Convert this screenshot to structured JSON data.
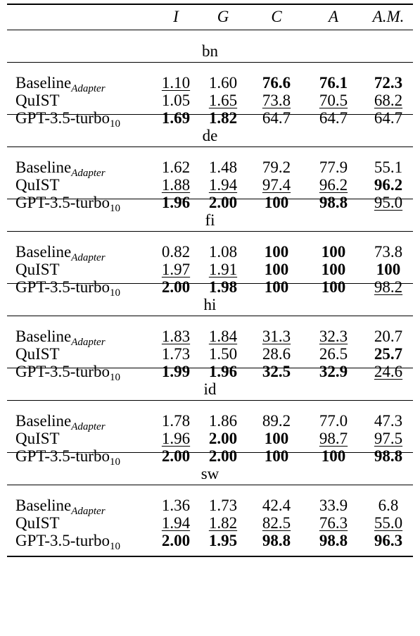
{
  "columns": [
    "I",
    "G",
    "C",
    "A",
    "A.M."
  ],
  "groups": [
    {
      "lang": "bn",
      "rows": [
        {
          "model": "Baseline",
          "sub": "Adapter",
          "cells": [
            {
              "v": "1.10",
              "u": true
            },
            {
              "v": "1.60"
            },
            {
              "v": "76.6",
              "b": true
            },
            {
              "v": "76.1",
              "b": true
            },
            {
              "v": "72.3",
              "b": true
            }
          ]
        },
        {
          "model": "QuIST",
          "sub": "",
          "cells": [
            {
              "v": "1.05"
            },
            {
              "v": "1.65",
              "u": true
            },
            {
              "v": "73.8",
              "u": true
            },
            {
              "v": "70.5",
              "u": true
            },
            {
              "v": "68.2",
              "u": true
            }
          ]
        },
        {
          "model": "GPT-3.5-turbo",
          "sub": "10",
          "cells": [
            {
              "v": "1.69",
              "b": true
            },
            {
              "v": "1.82",
              "b": true
            },
            {
              "v": "64.7"
            },
            {
              "v": "64.7"
            },
            {
              "v": "64.7"
            }
          ]
        }
      ]
    },
    {
      "lang": "de",
      "rows": [
        {
          "model": "Baseline",
          "sub": "Adapter",
          "cells": [
            {
              "v": "1.62"
            },
            {
              "v": "1.48"
            },
            {
              "v": "79.2"
            },
            {
              "v": "77.9"
            },
            {
              "v": "55.1"
            }
          ]
        },
        {
          "model": "QuIST",
          "sub": "",
          "cells": [
            {
              "v": "1.88",
              "u": true
            },
            {
              "v": "1.94",
              "u": true
            },
            {
              "v": "97.4",
              "u": true
            },
            {
              "v": "96.2",
              "u": true
            },
            {
              "v": "96.2",
              "b": true
            }
          ]
        },
        {
          "model": "GPT-3.5-turbo",
          "sub": "10",
          "cells": [
            {
              "v": "1.96",
              "b": true
            },
            {
              "v": "2.00",
              "b": true
            },
            {
              "v": "100",
              "b": true
            },
            {
              "v": "98.8",
              "b": true
            },
            {
              "v": "95.0",
              "u": true
            }
          ]
        }
      ]
    },
    {
      "lang": "fi",
      "rows": [
        {
          "model": "Baseline",
          "sub": "Adapter",
          "cells": [
            {
              "v": "0.82"
            },
            {
              "v": "1.08"
            },
            {
              "v": "100",
              "b": true
            },
            {
              "v": "100",
              "b": true
            },
            {
              "v": "73.8"
            }
          ]
        },
        {
          "model": "QuIST",
          "sub": "",
          "cells": [
            {
              "v": "1.97",
              "u": true
            },
            {
              "v": "1.91",
              "u": true
            },
            {
              "v": "100",
              "b": true
            },
            {
              "v": "100",
              "b": true
            },
            {
              "v": "100",
              "b": true
            }
          ]
        },
        {
          "model": "GPT-3.5-turbo",
          "sub": "10",
          "cells": [
            {
              "v": "2.00",
              "b": true
            },
            {
              "v": "1.98",
              "b": true
            },
            {
              "v": "100",
              "b": true
            },
            {
              "v": "100",
              "b": true
            },
            {
              "v": "98.2",
              "u": true
            }
          ]
        }
      ]
    },
    {
      "lang": "hi",
      "rows": [
        {
          "model": "Baseline",
          "sub": "Adapter",
          "cells": [
            {
              "v": "1.83",
              "u": true
            },
            {
              "v": "1.84",
              "u": true
            },
            {
              "v": "31.3",
              "u": true
            },
            {
              "v": "32.3",
              "u": true
            },
            {
              "v": "20.7"
            }
          ]
        },
        {
          "model": "QuIST",
          "sub": "",
          "cells": [
            {
              "v": "1.73"
            },
            {
              "v": "1.50"
            },
            {
              "v": "28.6"
            },
            {
              "v": "26.5"
            },
            {
              "v": "25.7",
              "b": true
            }
          ]
        },
        {
          "model": "GPT-3.5-turbo",
          "sub": "10",
          "cells": [
            {
              "v": "1.99",
              "b": true
            },
            {
              "v": "1.96",
              "b": true
            },
            {
              "v": "32.5",
              "b": true
            },
            {
              "v": "32.9",
              "b": true
            },
            {
              "v": "24.6",
              "u": true
            }
          ]
        }
      ]
    },
    {
      "lang": "id",
      "rows": [
        {
          "model": "Baseline",
          "sub": "Adapter",
          "cells": [
            {
              "v": "1.78"
            },
            {
              "v": "1.86"
            },
            {
              "v": "89.2"
            },
            {
              "v": "77.0"
            },
            {
              "v": "47.3"
            }
          ]
        },
        {
          "model": "QuIST",
          "sub": "",
          "cells": [
            {
              "v": "1.96",
              "u": true
            },
            {
              "v": "2.00",
              "b": true
            },
            {
              "v": "100",
              "b": true
            },
            {
              "v": "98.7",
              "u": true
            },
            {
              "v": "97.5",
              "u": true
            }
          ]
        },
        {
          "model": "GPT-3.5-turbo",
          "sub": "10",
          "cells": [
            {
              "v": "2.00",
              "b": true
            },
            {
              "v": "2.00",
              "b": true
            },
            {
              "v": "100",
              "b": true
            },
            {
              "v": "100",
              "b": true
            },
            {
              "v": "98.8",
              "b": true
            }
          ]
        }
      ]
    },
    {
      "lang": "sw",
      "rows": [
        {
          "model": "Baseline",
          "sub": "Adapter",
          "cells": [
            {
              "v": "1.36"
            },
            {
              "v": "1.73"
            },
            {
              "v": "42.4"
            },
            {
              "v": "33.9"
            },
            {
              "v": "6.8"
            }
          ]
        },
        {
          "model": "QuIST",
          "sub": "",
          "cells": [
            {
              "v": "1.94",
              "u": true
            },
            {
              "v": "1.82",
              "u": true
            },
            {
              "v": "82.5",
              "u": true
            },
            {
              "v": "76.3",
              "u": true
            },
            {
              "v": "55.0",
              "u": true
            }
          ]
        },
        {
          "model": "GPT-3.5-turbo",
          "sub": "10",
          "cells": [
            {
              "v": "2.00",
              "b": true
            },
            {
              "v": "1.95",
              "b": true
            },
            {
              "v": "98.8",
              "b": true
            },
            {
              "v": "98.8",
              "b": true
            },
            {
              "v": "96.3",
              "b": true
            }
          ]
        }
      ]
    }
  ]
}
